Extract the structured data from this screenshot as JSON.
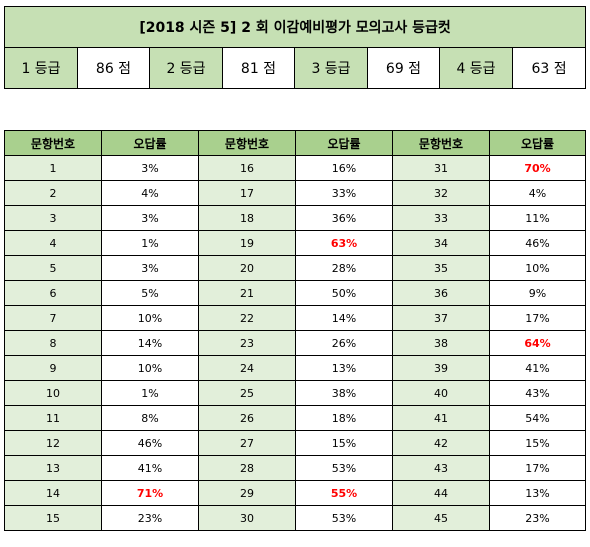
{
  "title": "[2018 시즌 5] 2 회  이감예비평가 모의고사  등급컷",
  "grade_cuts": [
    {
      "grade": "1 등급",
      "score": "86 점"
    },
    {
      "grade": "2 등급",
      "score": "81 점"
    },
    {
      "grade": "3 등급",
      "score": "69 점"
    },
    {
      "grade": "4 등급",
      "score": "63 점"
    }
  ],
  "table_headers": [
    "문항번호",
    "오답률",
    "문항번호",
    "오답률",
    "문항번호",
    "오답률"
  ],
  "questions": [
    {
      "num": "1",
      "rate": "3%"
    },
    {
      "num": "2",
      "rate": "4%"
    },
    {
      "num": "3",
      "rate": "3%"
    },
    {
      "num": "4",
      "rate": "1%"
    },
    {
      "num": "5",
      "rate": "3%"
    },
    {
      "num": "6",
      "rate": "5%"
    },
    {
      "num": "7",
      "rate": "10%"
    },
    {
      "num": "8",
      "rate": "14%"
    },
    {
      "num": "9",
      "rate": "10%"
    },
    {
      "num": "10",
      "rate": "1%"
    },
    {
      "num": "11",
      "rate": "8%"
    },
    {
      "num": "12",
      "rate": "46%"
    },
    {
      "num": "13",
      "rate": "41%"
    },
    {
      "num": "14",
      "rate": "71%",
      "highlight": true
    },
    {
      "num": "15",
      "rate": "23%"
    },
    {
      "num": "16",
      "rate": "16%"
    },
    {
      "num": "17",
      "rate": "33%"
    },
    {
      "num": "18",
      "rate": "36%"
    },
    {
      "num": "19",
      "rate": "63%",
      "highlight": true
    },
    {
      "num": "20",
      "rate": "28%"
    },
    {
      "num": "21",
      "rate": "50%"
    },
    {
      "num": "22",
      "rate": "14%"
    },
    {
      "num": "23",
      "rate": "26%"
    },
    {
      "num": "24",
      "rate": "13%"
    },
    {
      "num": "25",
      "rate": "38%"
    },
    {
      "num": "26",
      "rate": "18%"
    },
    {
      "num": "27",
      "rate": "15%"
    },
    {
      "num": "28",
      "rate": "53%"
    },
    {
      "num": "29",
      "rate": "55%",
      "highlight": true
    },
    {
      "num": "30",
      "rate": "53%"
    },
    {
      "num": "31",
      "rate": "70%",
      "highlight": true
    },
    {
      "num": "32",
      "rate": "4%"
    },
    {
      "num": "33",
      "rate": "11%"
    },
    {
      "num": "34",
      "rate": "46%"
    },
    {
      "num": "35",
      "rate": "10%"
    },
    {
      "num": "36",
      "rate": "9%"
    },
    {
      "num": "37",
      "rate": "17%"
    },
    {
      "num": "38",
      "rate": "64%",
      "highlight": true
    },
    {
      "num": "39",
      "rate": "41%"
    },
    {
      "num": "40",
      "rate": "43%"
    },
    {
      "num": "41",
      "rate": "54%"
    },
    {
      "num": "42",
      "rate": "15%"
    },
    {
      "num": "43",
      "rate": "17%"
    },
    {
      "num": "44",
      "rate": "13%"
    },
    {
      "num": "45",
      "rate": "23%"
    }
  ],
  "colors": {
    "title_bg": "#c6e0b4",
    "header_bg": "#a9d08e",
    "qnum_bg": "#e2efda",
    "highlight_text": "#ff0000"
  }
}
